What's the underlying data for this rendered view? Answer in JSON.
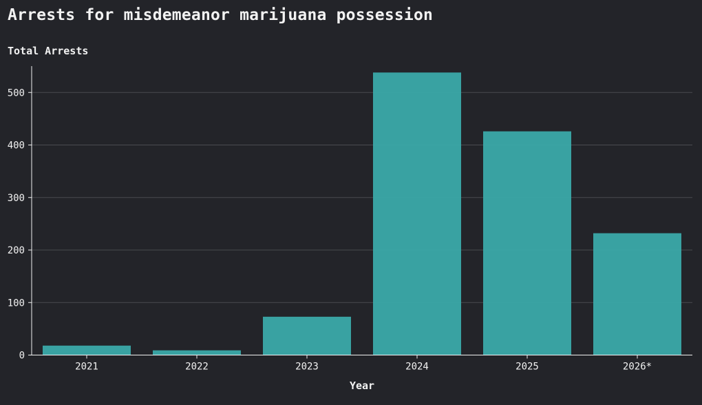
{
  "colors": {
    "background": "#232429",
    "bar": "#3aa8a8",
    "grid": "#4a4b50",
    "axis": "#f2f2f2",
    "text": "#f2f2f2"
  },
  "chart_data": {
    "type": "bar",
    "title": "Arrests for misdemeanor marijuana possession",
    "ylabel": "Total Arrests",
    "xlabel": "Year",
    "categories": [
      "2021",
      "2022",
      "2023",
      "2024",
      "2025",
      "2026*"
    ],
    "values": [
      18,
      9,
      73,
      538,
      426,
      232
    ],
    "ylim": [
      0,
      550
    ],
    "yticks": [
      0,
      100,
      200,
      300,
      400,
      500
    ],
    "grid": true
  }
}
